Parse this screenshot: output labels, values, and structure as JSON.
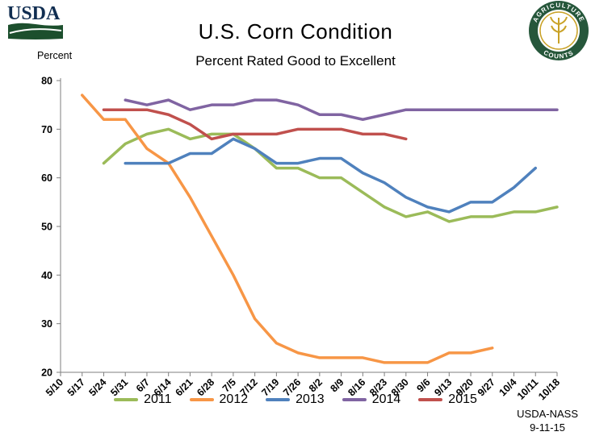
{
  "header": {
    "y_axis_caption": "Percent"
  },
  "logos": {
    "usda": "USDA",
    "agriculture_counts_top": "AGRICULTURE",
    "agriculture_counts_bottom": "COUNTS"
  },
  "footer": {
    "source": "USDA-NASS",
    "date": "9-11-15"
  },
  "chart_data": {
    "type": "line",
    "title": "U.S. Corn Condition",
    "subtitle": "Percent Rated Good to Excellent",
    "xlabel": "",
    "ylabel": "Percent",
    "ylim": [
      20,
      80
    ],
    "ytick_step": 10,
    "grid": false,
    "legend_position": "bottom",
    "categories": [
      "5/10",
      "5/17",
      "5/24",
      "5/31",
      "6/7",
      "6/14",
      "6/21",
      "6/28",
      "7/5",
      "7/12",
      "7/19",
      "7/26",
      "8/2",
      "8/9",
      "8/16",
      "8/23",
      "8/30",
      "9/6",
      "9/13",
      "9/20",
      "9/27",
      "10/4",
      "10/11",
      "10/18"
    ],
    "series": [
      {
        "name": "2011",
        "color": "#9BBB59",
        "values": [
          null,
          null,
          63,
          67,
          69,
          70,
          68,
          69,
          69,
          66,
          62,
          62,
          60,
          60,
          57,
          54,
          52,
          53,
          51,
          52,
          52,
          53,
          53,
          54
        ]
      },
      {
        "name": "2012",
        "color": "#F79646",
        "values": [
          null,
          77,
          72,
          72,
          66,
          63,
          56,
          48,
          40,
          31,
          26,
          24,
          23,
          23,
          23,
          22,
          22,
          22,
          24,
          24,
          25,
          null,
          null,
          null
        ]
      },
      {
        "name": "2013",
        "color": "#4F81BD",
        "values": [
          null,
          null,
          null,
          63,
          63,
          63,
          65,
          65,
          68,
          66,
          63,
          63,
          64,
          64,
          61,
          59,
          56,
          54,
          53,
          55,
          55,
          58,
          62,
          null
        ]
      },
      {
        "name": "2014",
        "color": "#8064A2",
        "values": [
          null,
          null,
          null,
          76,
          75,
          76,
          74,
          75,
          75,
          76,
          76,
          75,
          73,
          73,
          72,
          73,
          74,
          74,
          74,
          74,
          74,
          74,
          74,
          74
        ]
      },
      {
        "name": "2015",
        "color": "#C0504D",
        "values": [
          null,
          null,
          74,
          74,
          74,
          73,
          71,
          68,
          69,
          69,
          69,
          70,
          70,
          70,
          69,
          69,
          68,
          null,
          null,
          null,
          null,
          null,
          null,
          null
        ]
      }
    ]
  }
}
